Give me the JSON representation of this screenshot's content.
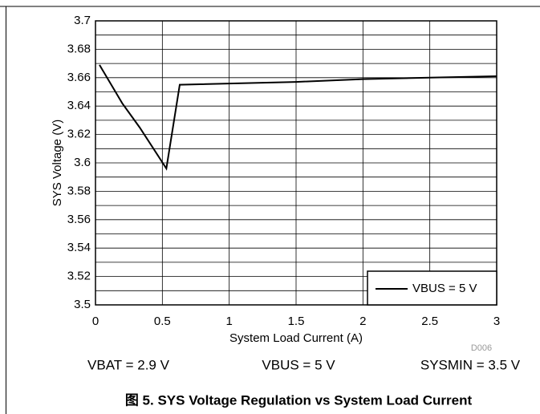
{
  "chart_data": {
    "type": "line",
    "y_label": "SYS Voltage (V)",
    "x_label": "System Load Current (A)",
    "code": "D006",
    "conditions": [
      "VBAT = 2.9 V",
      "VBUS = 5 V",
      "SYSMIN = 3.5 V"
    ],
    "caption": "图 5. SYS Voltage Regulation vs System Load Current",
    "x": [
      0.03,
      0.2,
      0.33,
      0.53,
      0.63,
      1.5,
      2,
      2.5,
      3
    ],
    "series": [
      {
        "name": "VBUS = 5 V",
        "color": "#000000",
        "values": [
          3.669,
          3.642,
          3.625,
          3.596,
          3.655,
          3.657,
          3.659,
          3.66,
          3.661
        ]
      }
    ],
    "xlim": [
      0,
      3
    ],
    "xticks": [
      0,
      0.5,
      1,
      1.5,
      2,
      2.5,
      3
    ],
    "ylim": [
      3.5,
      3.7
    ],
    "yticks": [
      3.5,
      3.52,
      3.54,
      3.56,
      3.58,
      3.6,
      3.62,
      3.64,
      3.66,
      3.68,
      3.7
    ],
    "y_minor_ticks": [
      3.51,
      3.53,
      3.55,
      3.57,
      3.59,
      3.61,
      3.63,
      3.65,
      3.67,
      3.69
    ],
    "grid": true,
    "legend": "lower right"
  }
}
